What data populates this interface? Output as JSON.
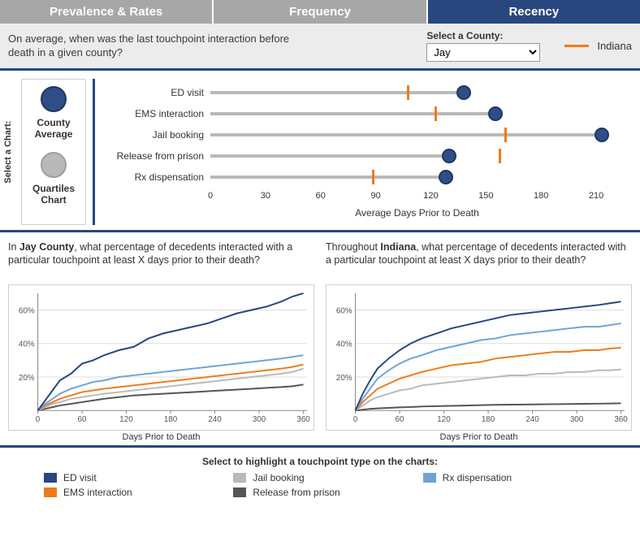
{
  "tabs": [
    "Prevalence & Rates",
    "Frequency",
    "Recency"
  ],
  "active_tab_index": 2,
  "colors": {
    "tab_inactive": "#a7a7a7",
    "tab_active": "#28477e",
    "panel_bg": "#ececec",
    "orange": "#ef7a1a",
    "navy": "#28477e",
    "grey_line": "#b9b9b9",
    "grid": "#dddddd",
    "text": "#3a3a3a"
  },
  "row1": {
    "question": "On average, when was the last touchpoint interaction before death in a given county?",
    "select_label": "Select a County:",
    "county_options": [
      "Jay"
    ],
    "county_selected": "Jay",
    "indiana_label": "Indiana"
  },
  "chart_select": {
    "side_label": "Select a Chart:",
    "options": [
      {
        "label": "County Average",
        "circle_color": "#2f4e87",
        "circle_border": "#1e3763"
      },
      {
        "label": "Quartiles Chart",
        "circle_color": "#b9b9b9",
        "circle_border": "#9e9e9e"
      }
    ]
  },
  "lollipop": {
    "x_min": 0,
    "x_max": 225,
    "x_ticks": [
      0,
      30,
      60,
      90,
      120,
      150,
      180,
      210
    ],
    "x_title": "Average Days Prior to Death",
    "dot_color": "#2f4e87",
    "dot_border": "#1e3763",
    "dot_radius": 9,
    "rows": [
      {
        "label": "ED visit",
        "county_value": 138,
        "indiana_value": 107
      },
      {
        "label": "EMS interaction",
        "county_value": 155,
        "indiana_value": 122
      },
      {
        "label": "Jail booking",
        "county_value": 213,
        "indiana_value": 160
      },
      {
        "label": "Release from prison",
        "county_value": 130,
        "indiana_value": 157
      },
      {
        "label": "Rx dispensation",
        "county_value": 128,
        "indiana_value": 88
      }
    ]
  },
  "percent_charts": {
    "county_question_prefix": "In ",
    "county_name": "Jay County",
    "county_question_suffix": ", what percentage of decedents interacted with a particular touchpoint at least X days prior to their death?",
    "state_question_prefix": "Throughout ",
    "state_name": "Indiana",
    "state_question_suffix": ", what percentage of decedents interacted with a particular touchpoint at least X days prior to their death?",
    "x_title": "Days Prior to Death",
    "x_min": 0,
    "x_max": 365,
    "x_ticks": [
      0,
      60,
      120,
      180,
      240,
      300,
      360
    ],
    "y_min": 0,
    "y_max": 70,
    "y_ticks": [
      20,
      40,
      60
    ],
    "series_colors": {
      "ED visit": "#28477e",
      "EMS interaction": "#ef7a1a",
      "Jail booking": "#b9b9b9",
      "Release from prison": "#555555",
      "Rx dispensation": "#6fa3d6"
    },
    "county_series": {
      "x": [
        0,
        10,
        20,
        30,
        45,
        60,
        75,
        90,
        110,
        130,
        150,
        170,
        190,
        210,
        230,
        250,
        270,
        290,
        310,
        330,
        345,
        360
      ],
      "ED visit": [
        0,
        6,
        12,
        18,
        22,
        28,
        30,
        33,
        36,
        38,
        43,
        46,
        48,
        50,
        52,
        55,
        58,
        60,
        62,
        65,
        68,
        70
      ],
      "Rx dispensation": [
        0,
        4,
        7,
        10,
        13,
        15,
        17,
        18,
        20,
        21,
        22,
        23,
        24,
        25,
        26,
        27,
        28,
        29,
        30,
        31,
        32,
        33
      ],
      "EMS interaction": [
        0,
        3,
        5,
        7,
        9,
        11,
        12,
        13,
        14,
        15,
        16,
        17,
        18,
        19,
        20,
        21,
        22,
        23,
        24,
        25,
        26,
        27.5
      ],
      "Jail booking": [
        0,
        2,
        4,
        5,
        7,
        8,
        9,
        10,
        11,
        12,
        13,
        14,
        15,
        16,
        17,
        18,
        19,
        20,
        21,
        22,
        23,
        25
      ],
      "Release from prison": [
        0,
        1,
        2,
        3,
        4,
        5,
        6,
        7,
        8,
        9,
        9.5,
        10,
        10.5,
        11,
        11.5,
        12,
        12.5,
        13,
        13.5,
        14,
        14.5,
        15.5
      ]
    },
    "state_series": {
      "x": [
        0,
        10,
        20,
        30,
        45,
        60,
        75,
        90,
        110,
        130,
        150,
        170,
        190,
        210,
        230,
        250,
        270,
        290,
        310,
        330,
        345,
        360
      ],
      "ED visit": [
        0,
        10,
        18,
        25,
        31,
        36,
        40,
        43,
        46,
        49,
        51,
        53,
        55,
        57,
        58,
        59,
        60,
        61,
        62,
        63,
        64,
        65
      ],
      "Rx dispensation": [
        0,
        7,
        13,
        19,
        24,
        28,
        31,
        33,
        36,
        38,
        40,
        42,
        43,
        45,
        46,
        47,
        48,
        49,
        50,
        50,
        51,
        52
      ],
      "EMS interaction": [
        0,
        5,
        9,
        13,
        16,
        19,
        21,
        23,
        25,
        27,
        28,
        29,
        31,
        32,
        33,
        34,
        35,
        35,
        36,
        36,
        37,
        37.5
      ],
      "Jail booking": [
        0,
        3,
        6,
        8,
        10,
        12,
        13,
        15,
        16,
        17,
        18,
        19,
        20,
        21,
        21,
        22,
        22,
        23,
        23,
        24,
        24,
        24.5
      ],
      "Release from prison": [
        0,
        0.5,
        1,
        1.3,
        1.6,
        1.9,
        2.1,
        2.4,
        2.6,
        2.8,
        3.0,
        3.2,
        3.4,
        3.5,
        3.6,
        3.7,
        3.8,
        3.9,
        4.0,
        4.1,
        4.2,
        4.3
      ]
    }
  },
  "legend": {
    "title": "Select to highlight a touchpoint type on the charts:",
    "items": [
      {
        "label": "ED visit",
        "color": "#28477e"
      },
      {
        "label": "Jail booking",
        "color": "#b9b9b9"
      },
      {
        "label": "Rx dispensation",
        "color": "#6fa3d6"
      },
      {
        "label": "EMS interaction",
        "color": "#ef7a1a"
      },
      {
        "label": "Release from prison",
        "color": "#555555"
      }
    ]
  }
}
